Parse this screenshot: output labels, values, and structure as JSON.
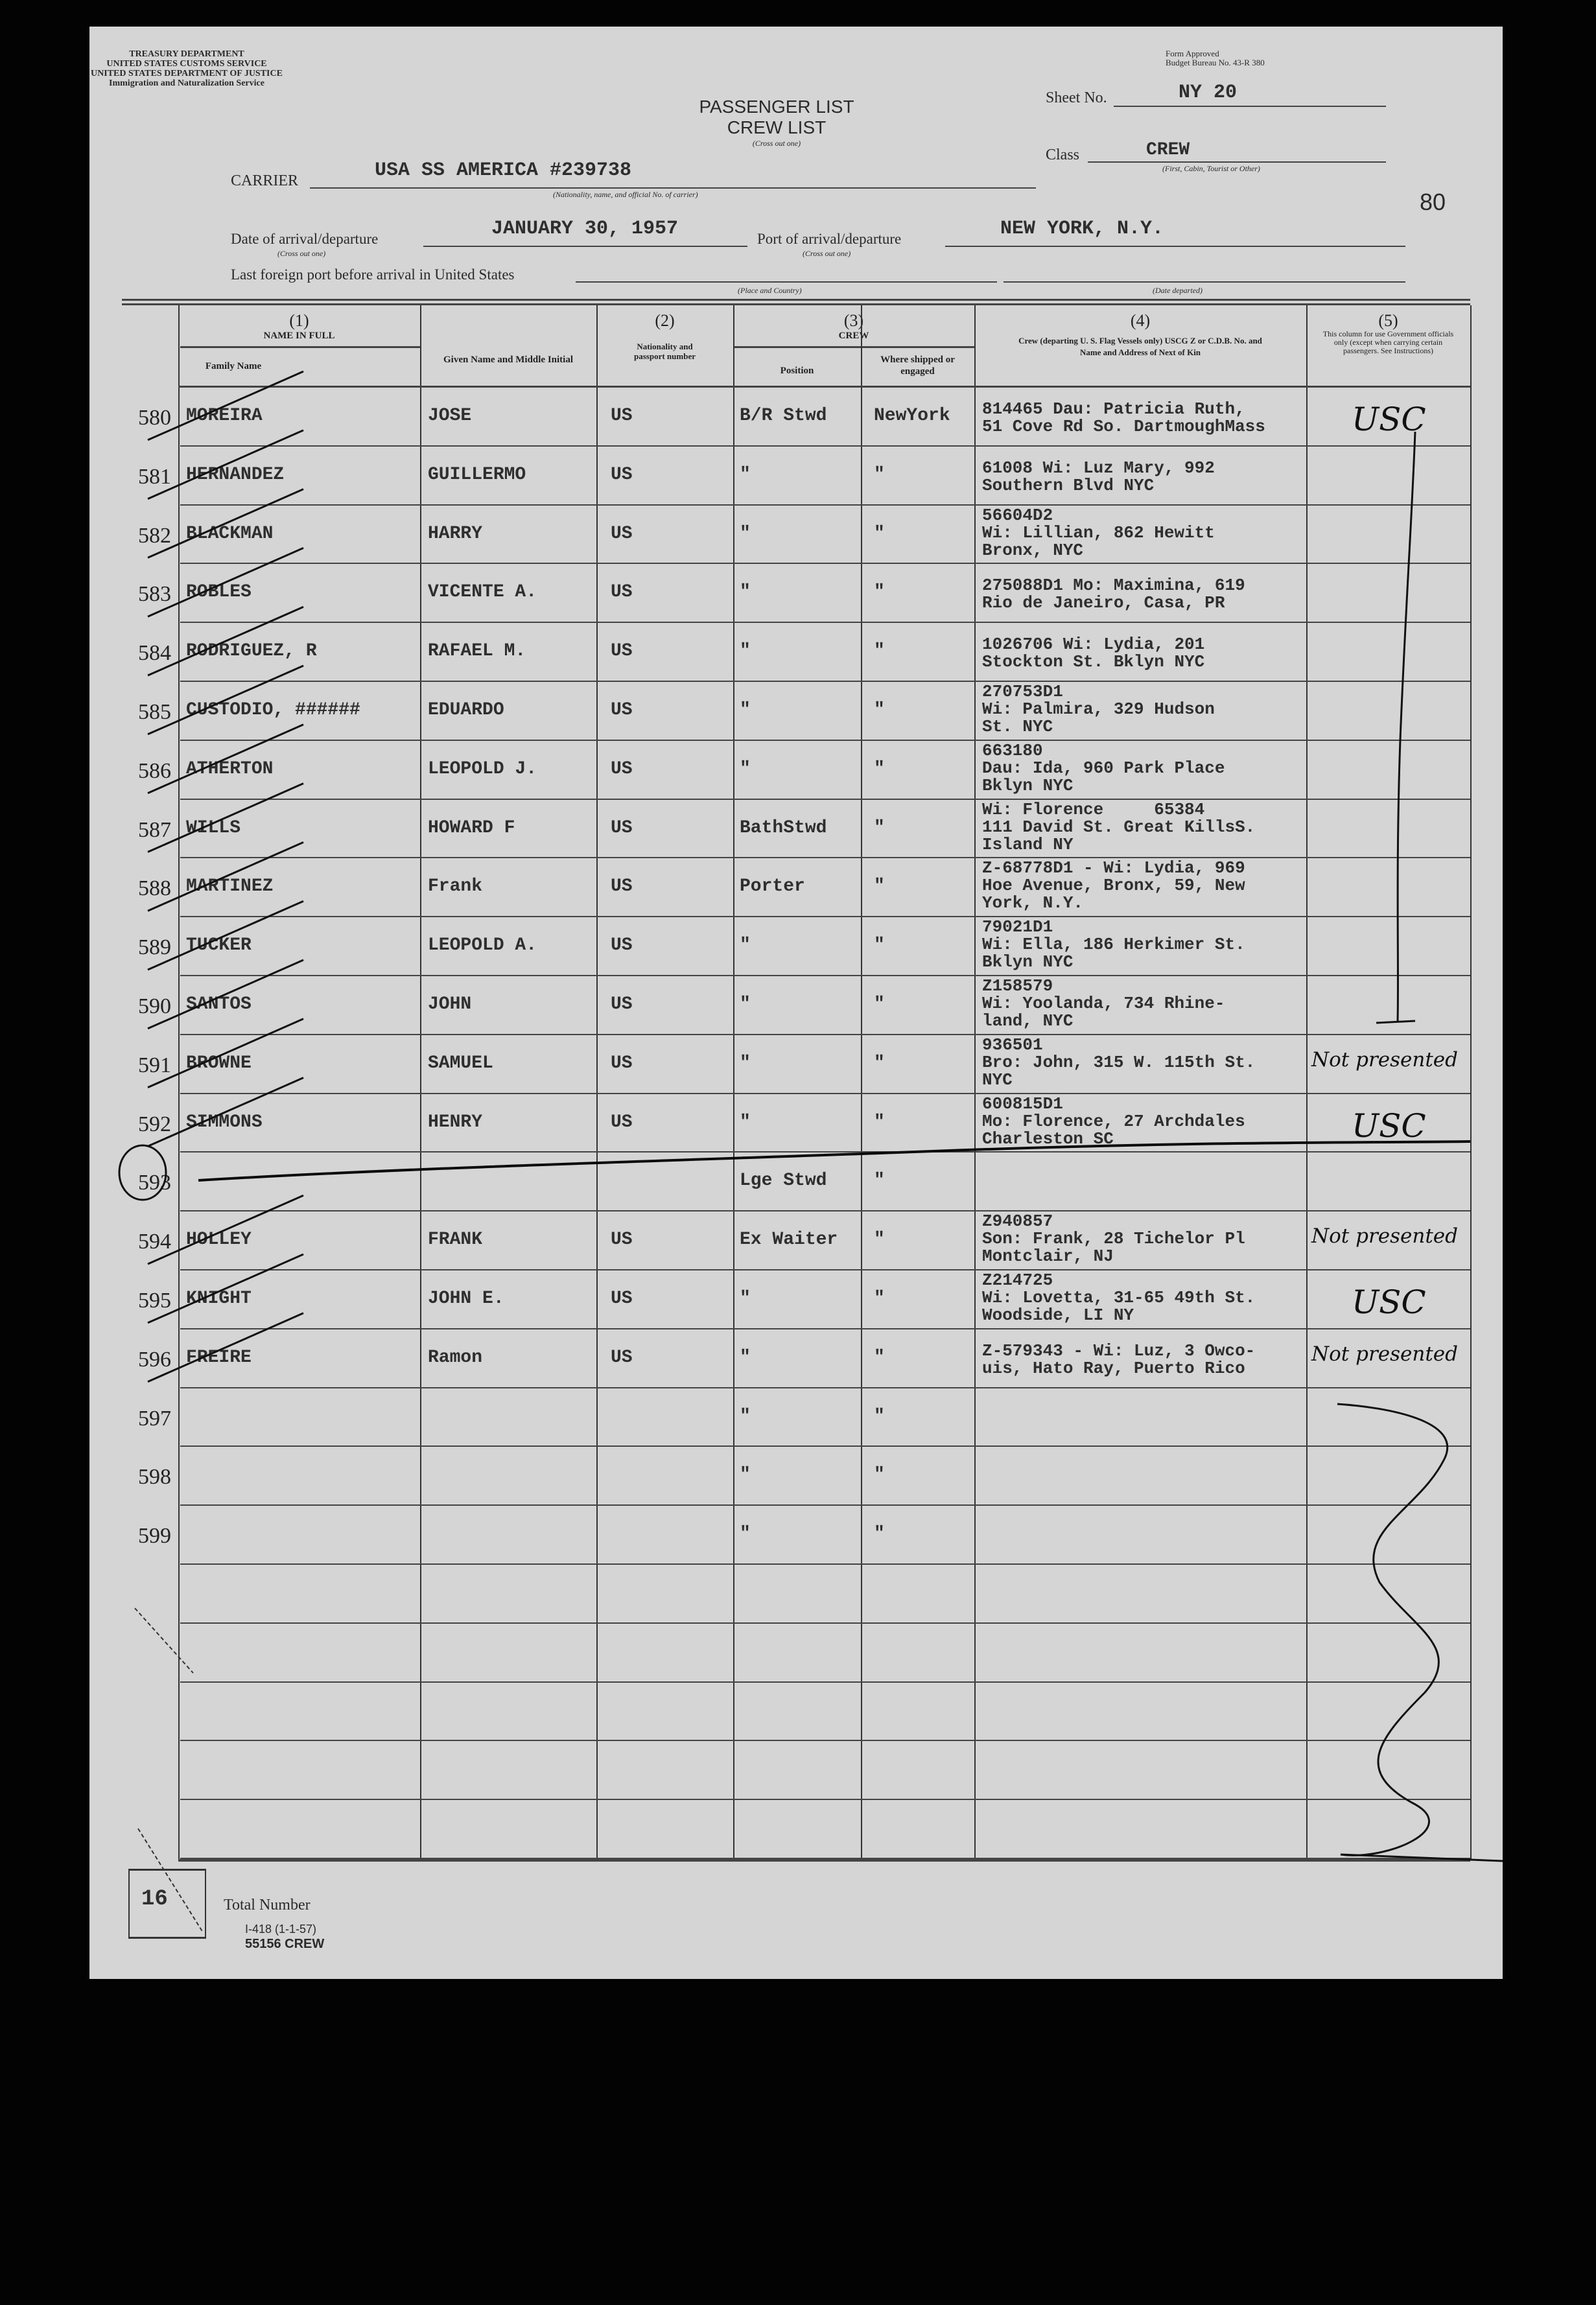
{
  "agency": {
    "line1": "TREASURY DEPARTMENT",
    "line2": "UNITED STATES CUSTOMS SERVICE",
    "line3": "UNITED STATES DEPARTMENT OF JUSTICE",
    "line4": "Immigration and Naturalization Service"
  },
  "form_approval": {
    "line1": "Form Approved",
    "line2": "Budget Bureau No. 43-R 380"
  },
  "title": {
    "passenger": "PASSENGER LIST",
    "crew": "CREW LIST",
    "note": "(Cross out one)"
  },
  "sheet": {
    "label": "Sheet No.",
    "value": "NY 20"
  },
  "class": {
    "label": "Class",
    "value": "CREW",
    "note": "(First, Cabin, Tourist or Other)"
  },
  "carrier": {
    "label": "CARRIER",
    "value": "USA SS AMERICA #239738",
    "note": "(Nationality, name, and official No. of carrier)"
  },
  "page_number": "80",
  "date": {
    "label": "Date of arrival/departure",
    "value": "JANUARY 30, 1957",
    "note": "(Cross out one)"
  },
  "port": {
    "label": "Port of arrival/departure",
    "value": "NEW YORK, N.Y.",
    "note": "(Cross out one)"
  },
  "last_port": {
    "label": "Last foreign port before arrival in United States",
    "place_note": "(Place and Country)",
    "date_note": "(Date departed)"
  },
  "columns": {
    "c1_num": "(1)",
    "c1_title": "NAME IN FULL",
    "c1a": "Family Name",
    "c1b": "Given Name and Middle Initial",
    "c2_num": "(2)",
    "c2_title": "Nationality and passport number",
    "c3_num": "(3)",
    "c3_title": "CREW",
    "c3a": "Position",
    "c3b": "Where shipped or engaged",
    "c4_num": "(4)",
    "c4_title": "Crew (departing U. S. Flag Vessels only) USCG Z or C.D.B. No. and Name and Address of Next of Kin",
    "c5_num": "(5)",
    "c5_title": "This column for use Government officials only (except when carrying certain passengers. See Instructions)"
  },
  "rows": [
    {
      "num": "580",
      "family": "MOREIRA",
      "given": "JOSE",
      "nat": "US",
      "position": "B/R Stwd",
      "shipped": "NewYork",
      "kin": "814465 Dau: Patricia Ruth,\n51 Cove Rd So. DartmoughMass",
      "official": "USC"
    },
    {
      "num": "581",
      "family": "HERNANDEZ",
      "given": "GUILLERMO",
      "nat": "US",
      "position": "\"",
      "shipped": "\"",
      "kin": "61008 Wi: Luz Mary, 992\nSouthern Blvd NYC",
      "official": ""
    },
    {
      "num": "582",
      "family": "BLACKMAN",
      "given": "HARRY",
      "nat": "US",
      "position": "\"",
      "shipped": "\"",
      "kin": "56604D2\nWi: Lillian, 862 Hewitt\nBronx, NYC",
      "official": ""
    },
    {
      "num": "583",
      "family": "ROBLES",
      "given": "VICENTE A.",
      "nat": "US",
      "position": "\"",
      "shipped": "\"",
      "kin": "275088D1 Mo: Maximina, 619\nRio de Janeiro, Casa, PR",
      "official": ""
    },
    {
      "num": "584",
      "family": "RODRIGUEZ, R",
      "given": "RAFAEL M.",
      "nat": "US",
      "position": "\"",
      "shipped": "\"",
      "kin": "1026706 Wi: Lydia, 201\nStockton St. Bklyn NYC",
      "official": ""
    },
    {
      "num": "585",
      "family": "CUSTODIO, ######",
      "given": "EDUARDO",
      "nat": "US",
      "position": "\"",
      "shipped": "\"",
      "kin": "270753D1\nWi: Palmira, 329 Hudson\nSt. NYC",
      "official": ""
    },
    {
      "num": "586",
      "family": "ATHERTON",
      "given": "LEOPOLD J.",
      "nat": "US",
      "position": "\"",
      "shipped": "\"",
      "kin": "663180\nDau: Ida, 960 Park Place\nBklyn NYC",
      "official": ""
    },
    {
      "num": "587",
      "family": "WILLS",
      "given": "HOWARD F",
      "nat": "US",
      "position": "BathStwd",
      "shipped": "\"",
      "kin": "Wi: Florence     65384\n111 David St. Great KillsS.\nIsland NY",
      "official": ""
    },
    {
      "num": "588",
      "family": "MARTINEZ",
      "given": "Frank",
      "nat": "US",
      "position": "Porter",
      "shipped": "\"",
      "kin": "Z-68778D1 - Wi: Lydia, 969\nHoe Avenue, Bronx, 59, New\nYork, N.Y.",
      "official": ""
    },
    {
      "num": "589",
      "family": "TUCKER",
      "given": "LEOPOLD A.",
      "nat": "US",
      "position": "\"",
      "shipped": "\"",
      "kin": "79021D1\nWi: Ella, 186 Herkimer St.\nBklyn NYC",
      "official": ""
    },
    {
      "num": "590",
      "family": "SANTOS",
      "given": "JOHN",
      "nat": "US",
      "position": "\"",
      "shipped": "\"",
      "kin": "Z158579\nWi: Yoolanda, 734 Rhine-\nland, NYC",
      "official": ""
    },
    {
      "num": "591",
      "family": "BROWNE",
      "given": "SAMUEL",
      "nat": "US",
      "position": "\"",
      "shipped": "\"",
      "kin": "936501\nBro: John, 315 W. 115th St.\nNYC",
      "official": "Not presented"
    },
    {
      "num": "592",
      "family": "SIMMONS",
      "given": "HENRY",
      "nat": "US",
      "position": "\"",
      "shipped": "\"",
      "kin": "600815D1\nMo: Florence, 27 Archdales\nCharleston SC",
      "official": "USC"
    },
    {
      "num": "593",
      "family": "",
      "given": "",
      "nat": "",
      "position": "Lge Stwd",
      "shipped": "\"",
      "kin": "",
      "official": ""
    },
    {
      "num": "594",
      "family": "HOLLEY",
      "given": "FRANK",
      "nat": "US",
      "position": "Ex Waiter",
      "shipped": "\"",
      "kin": "Z940857\nSon: Frank, 28 Tichelor Pl\nMontclair, NJ",
      "official": "Not presented"
    },
    {
      "num": "595",
      "family": "KNIGHT",
      "given": "JOHN E.",
      "nat": "US",
      "position": "\"",
      "shipped": "\"",
      "kin": "Z214725\nWi: Lovetta, 31-65 49th St.\nWoodside, LI NY",
      "official": "USC"
    },
    {
      "num": "596",
      "family": "FREIRE",
      "given": "Ramon",
      "nat": "US",
      "position": "\"",
      "shipped": "\"",
      "kin": "Z-579343 - Wi: Luz, 3 Owco-\nuis, Hato Ray, Puerto Rico",
      "official": "Not presented"
    },
    {
      "num": "597",
      "family": "",
      "given": "",
      "nat": "",
      "position": "\"",
      "shipped": "\"",
      "kin": "",
      "official": ""
    },
    {
      "num": "598",
      "family": "",
      "given": "",
      "nat": "",
      "position": "\"",
      "shipped": "\"",
      "kin": "",
      "official": ""
    },
    {
      "num": "599",
      "family": "",
      "given": "",
      "nat": "",
      "position": "\"",
      "shipped": "\"",
      "kin": "",
      "official": ""
    },
    {
      "num": "",
      "family": "",
      "given": "",
      "nat": "",
      "position": "",
      "shipped": "",
      "kin": "",
      "official": ""
    },
    {
      "num": "",
      "family": "",
      "given": "",
      "nat": "",
      "position": "",
      "shipped": "",
      "kin": "",
      "official": ""
    },
    {
      "num": "",
      "family": "",
      "given": "",
      "nat": "",
      "position": "",
      "shipped": "",
      "kin": "",
      "official": ""
    },
    {
      "num": "",
      "family": "",
      "given": "",
      "nat": "",
      "position": "",
      "shipped": "",
      "kin": "",
      "official": ""
    },
    {
      "num": "",
      "family": "",
      "given": "",
      "nat": "",
      "position": "",
      "shipped": "",
      "kin": "",
      "official": ""
    }
  ],
  "footer": {
    "total_value": "16",
    "total_label": "Total Number",
    "form_no": "I-418 (1-1-57)",
    "form_code": "55156 CREW"
  }
}
